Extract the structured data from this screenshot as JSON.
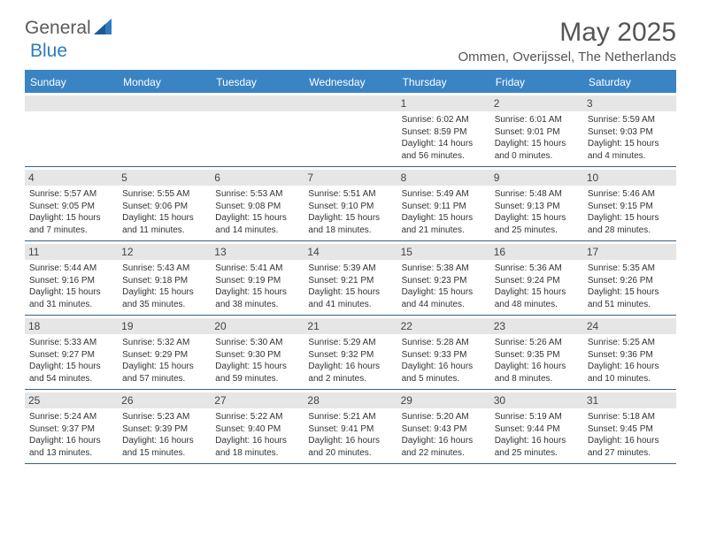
{
  "brand": {
    "general": "General",
    "blue": "Blue"
  },
  "title": "May 2025",
  "location": "Ommen, Overijssel, The Netherlands",
  "colors": {
    "header_bg": "#3a84c4",
    "daynum_bg": "#e6e6e6",
    "rule": "#3a5f7f",
    "text": "#3a3a3a"
  },
  "dow": [
    "Sunday",
    "Monday",
    "Tuesday",
    "Wednesday",
    "Thursday",
    "Friday",
    "Saturday"
  ],
  "weeks": [
    [
      null,
      null,
      null,
      null,
      {
        "n": "1",
        "sr": "Sunrise: 6:02 AM",
        "ss": "Sunset: 8:59 PM",
        "dl": "Daylight: 14 hours and 56 minutes."
      },
      {
        "n": "2",
        "sr": "Sunrise: 6:01 AM",
        "ss": "Sunset: 9:01 PM",
        "dl": "Daylight: 15 hours and 0 minutes."
      },
      {
        "n": "3",
        "sr": "Sunrise: 5:59 AM",
        "ss": "Sunset: 9:03 PM",
        "dl": "Daylight: 15 hours and 4 minutes."
      }
    ],
    [
      {
        "n": "4",
        "sr": "Sunrise: 5:57 AM",
        "ss": "Sunset: 9:05 PM",
        "dl": "Daylight: 15 hours and 7 minutes."
      },
      {
        "n": "5",
        "sr": "Sunrise: 5:55 AM",
        "ss": "Sunset: 9:06 PM",
        "dl": "Daylight: 15 hours and 11 minutes."
      },
      {
        "n": "6",
        "sr": "Sunrise: 5:53 AM",
        "ss": "Sunset: 9:08 PM",
        "dl": "Daylight: 15 hours and 14 minutes."
      },
      {
        "n": "7",
        "sr": "Sunrise: 5:51 AM",
        "ss": "Sunset: 9:10 PM",
        "dl": "Daylight: 15 hours and 18 minutes."
      },
      {
        "n": "8",
        "sr": "Sunrise: 5:49 AM",
        "ss": "Sunset: 9:11 PM",
        "dl": "Daylight: 15 hours and 21 minutes."
      },
      {
        "n": "9",
        "sr": "Sunrise: 5:48 AM",
        "ss": "Sunset: 9:13 PM",
        "dl": "Daylight: 15 hours and 25 minutes."
      },
      {
        "n": "10",
        "sr": "Sunrise: 5:46 AM",
        "ss": "Sunset: 9:15 PM",
        "dl": "Daylight: 15 hours and 28 minutes."
      }
    ],
    [
      {
        "n": "11",
        "sr": "Sunrise: 5:44 AM",
        "ss": "Sunset: 9:16 PM",
        "dl": "Daylight: 15 hours and 31 minutes."
      },
      {
        "n": "12",
        "sr": "Sunrise: 5:43 AM",
        "ss": "Sunset: 9:18 PM",
        "dl": "Daylight: 15 hours and 35 minutes."
      },
      {
        "n": "13",
        "sr": "Sunrise: 5:41 AM",
        "ss": "Sunset: 9:19 PM",
        "dl": "Daylight: 15 hours and 38 minutes."
      },
      {
        "n": "14",
        "sr": "Sunrise: 5:39 AM",
        "ss": "Sunset: 9:21 PM",
        "dl": "Daylight: 15 hours and 41 minutes."
      },
      {
        "n": "15",
        "sr": "Sunrise: 5:38 AM",
        "ss": "Sunset: 9:23 PM",
        "dl": "Daylight: 15 hours and 44 minutes."
      },
      {
        "n": "16",
        "sr": "Sunrise: 5:36 AM",
        "ss": "Sunset: 9:24 PM",
        "dl": "Daylight: 15 hours and 48 minutes."
      },
      {
        "n": "17",
        "sr": "Sunrise: 5:35 AM",
        "ss": "Sunset: 9:26 PM",
        "dl": "Daylight: 15 hours and 51 minutes."
      }
    ],
    [
      {
        "n": "18",
        "sr": "Sunrise: 5:33 AM",
        "ss": "Sunset: 9:27 PM",
        "dl": "Daylight: 15 hours and 54 minutes."
      },
      {
        "n": "19",
        "sr": "Sunrise: 5:32 AM",
        "ss": "Sunset: 9:29 PM",
        "dl": "Daylight: 15 hours and 57 minutes."
      },
      {
        "n": "20",
        "sr": "Sunrise: 5:30 AM",
        "ss": "Sunset: 9:30 PM",
        "dl": "Daylight: 15 hours and 59 minutes."
      },
      {
        "n": "21",
        "sr": "Sunrise: 5:29 AM",
        "ss": "Sunset: 9:32 PM",
        "dl": "Daylight: 16 hours and 2 minutes."
      },
      {
        "n": "22",
        "sr": "Sunrise: 5:28 AM",
        "ss": "Sunset: 9:33 PM",
        "dl": "Daylight: 16 hours and 5 minutes."
      },
      {
        "n": "23",
        "sr": "Sunrise: 5:26 AM",
        "ss": "Sunset: 9:35 PM",
        "dl": "Daylight: 16 hours and 8 minutes."
      },
      {
        "n": "24",
        "sr": "Sunrise: 5:25 AM",
        "ss": "Sunset: 9:36 PM",
        "dl": "Daylight: 16 hours and 10 minutes."
      }
    ],
    [
      {
        "n": "25",
        "sr": "Sunrise: 5:24 AM",
        "ss": "Sunset: 9:37 PM",
        "dl": "Daylight: 16 hours and 13 minutes."
      },
      {
        "n": "26",
        "sr": "Sunrise: 5:23 AM",
        "ss": "Sunset: 9:39 PM",
        "dl": "Daylight: 16 hours and 15 minutes."
      },
      {
        "n": "27",
        "sr": "Sunrise: 5:22 AM",
        "ss": "Sunset: 9:40 PM",
        "dl": "Daylight: 16 hours and 18 minutes."
      },
      {
        "n": "28",
        "sr": "Sunrise: 5:21 AM",
        "ss": "Sunset: 9:41 PM",
        "dl": "Daylight: 16 hours and 20 minutes."
      },
      {
        "n": "29",
        "sr": "Sunrise: 5:20 AM",
        "ss": "Sunset: 9:43 PM",
        "dl": "Daylight: 16 hours and 22 minutes."
      },
      {
        "n": "30",
        "sr": "Sunrise: 5:19 AM",
        "ss": "Sunset: 9:44 PM",
        "dl": "Daylight: 16 hours and 25 minutes."
      },
      {
        "n": "31",
        "sr": "Sunrise: 5:18 AM",
        "ss": "Sunset: 9:45 PM",
        "dl": "Daylight: 16 hours and 27 minutes."
      }
    ]
  ]
}
